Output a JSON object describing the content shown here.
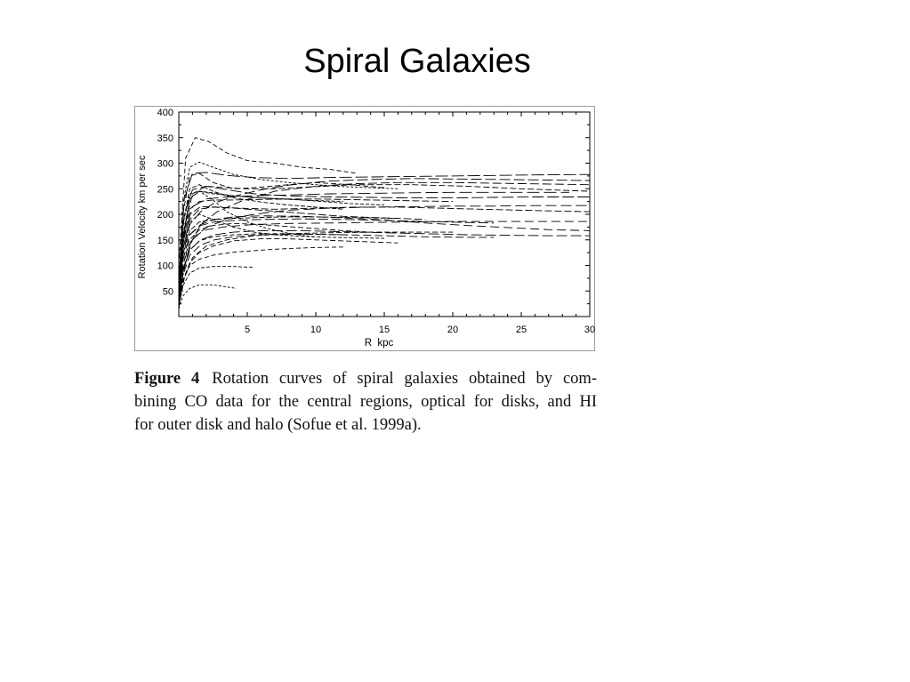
{
  "slide": {
    "title": "Spiral Galaxies"
  },
  "figure": {
    "caption_label": "Figure 4",
    "caption_lines": [
      "Rotation curves of spiral galaxies obtained by com-",
      "bining CO data for the central regions, optical for disks, and HI",
      "for outer disk and halo (Sofue et al. 1999a)."
    ]
  },
  "chart_data": {
    "type": "line",
    "title": "",
    "xlabel": "R  kpc",
    "ylabel": "Rotation Velocity km per sec",
    "xlim": [
      0,
      30
    ],
    "ylim": [
      0,
      400
    ],
    "xticks": [
      5,
      10,
      15,
      20,
      25,
      30
    ],
    "yticks": [
      50,
      100,
      150,
      200,
      250,
      300,
      350,
      400
    ],
    "grid": false,
    "line_color": "#000000",
    "series": [
      {
        "x": [
          0,
          0.3,
          0.8,
          1.5,
          2.5,
          4,
          6,
          8,
          10,
          12.5,
          15
        ],
        "y": [
          60,
          200,
          275,
          280,
          262,
          250,
          253,
          258,
          262,
          258,
          252
        ],
        "dash": "6,3"
      },
      {
        "x": [
          0,
          0.3,
          0.8,
          1.5,
          2.5,
          4,
          6,
          8,
          10,
          12.5,
          15
        ],
        "y": [
          40,
          150,
          232,
          245,
          240,
          236,
          232,
          230,
          226,
          221,
          218
        ],
        "dash": "4,2"
      },
      {
        "x": [
          0,
          0.5,
          1.2,
          2.2,
          3.5,
          5,
          7,
          9,
          11,
          13
        ],
        "y": [
          100,
          310,
          350,
          342,
          320,
          305,
          300,
          292,
          288,
          280
        ],
        "dash": "5,3"
      },
      {
        "x": [
          0,
          0.3,
          0.8,
          1.6,
          2.6,
          4,
          6,
          8,
          11,
          14,
          17,
          20,
          24,
          27,
          30
        ],
        "y": [
          30,
          120,
          180,
          205,
          222,
          235,
          248,
          257,
          265,
          268,
          270,
          269,
          268,
          267,
          266
        ],
        "dash": "12,4"
      },
      {
        "x": [
          0,
          0.3,
          0.8,
          1.6,
          2.8,
          4.5,
          7,
          10,
          13,
          16,
          20,
          25,
          30
        ],
        "y": [
          20,
          80,
          140,
          180,
          205,
          225,
          245,
          255,
          260,
          262,
          262,
          260,
          258
        ],
        "dash": "10,4"
      },
      {
        "x": [
          0,
          0.4,
          1,
          2,
          3.5,
          5,
          7,
          10,
          13,
          17,
          21,
          25,
          30
        ],
        "y": [
          50,
          170,
          240,
          255,
          252,
          250,
          250,
          254,
          258,
          258,
          255,
          250,
          245
        ],
        "dash": "7,3"
      },
      {
        "x": [
          0,
          0.3,
          0.8,
          1.6,
          2.8,
          4.5,
          7,
          10,
          13,
          16,
          19,
          22,
          25,
          28,
          30
        ],
        "y": [
          40,
          140,
          200,
          215,
          214,
          212,
          210,
          212,
          214,
          214,
          212,
          210,
          208,
          206,
          205
        ],
        "dash": "8,3"
      },
      {
        "x": [
          0,
          0.3,
          0.8,
          1.6,
          2.6,
          4,
          6,
          9,
          12,
          15,
          18,
          21,
          24,
          27,
          30
        ],
        "y": [
          30,
          110,
          160,
          180,
          190,
          195,
          197,
          196,
          193,
          189,
          183,
          178,
          174,
          170,
          168
        ],
        "dash": "10,5"
      },
      {
        "x": [
          0,
          0.3,
          0.8,
          1.6,
          2.6,
          4,
          6,
          9,
          12,
          15,
          18,
          21,
          24,
          27,
          30
        ],
        "y": [
          25,
          90,
          130,
          150,
          160,
          165,
          168,
          168,
          166,
          164,
          162,
          160,
          159,
          158,
          158
        ],
        "dash": "12,4"
      },
      {
        "x": [
          0,
          0.3,
          0.8,
          1.5,
          2.5,
          4,
          6,
          8,
          10,
          12,
          14,
          16
        ],
        "y": [
          60,
          220,
          292,
          302,
          292,
          278,
          268,
          262,
          258,
          254,
          252,
          250
        ],
        "dash": "3,2"
      },
      {
        "x": [
          0,
          0.3,
          0.8,
          1.5,
          2.5,
          4,
          6,
          8,
          10,
          12
        ],
        "y": [
          50,
          180,
          250,
          258,
          245,
          232,
          224,
          218,
          214,
          210
        ],
        "dash": "5,2"
      },
      {
        "x": [
          0,
          0.3,
          0.8,
          1.5,
          2.5,
          4,
          6,
          8,
          10,
          12,
          14
        ],
        "y": [
          30,
          100,
          150,
          170,
          178,
          182,
          180,
          176,
          172,
          168,
          165
        ],
        "dash": "6,3"
      },
      {
        "x": [
          0,
          0.3,
          0.8,
          1.5,
          2.5,
          3.5,
          4.2
        ],
        "y": [
          15,
          40,
          55,
          62,
          62,
          58,
          55
        ],
        "dash": "3,2"
      },
      {
        "x": [
          0,
          0.3,
          0.8,
          1.5,
          2.5,
          4,
          5.5
        ],
        "y": [
          20,
          60,
          85,
          95,
          98,
          98,
          96
        ],
        "dash": "4,2"
      },
      {
        "x": [
          0,
          0.3,
          0.8,
          1.5,
          2.5,
          4,
          6,
          8,
          10,
          12
        ],
        "y": [
          25,
          70,
          100,
          112,
          120,
          126,
          130,
          133,
          135,
          136
        ],
        "dash": "5,3"
      },
      {
        "x": [
          0,
          0.4,
          1,
          2,
          3.5,
          5.5,
          8,
          11,
          14,
          17,
          20,
          23,
          26,
          28.5
        ],
        "y": [
          50,
          160,
          215,
          230,
          234,
          236,
          238,
          240,
          241,
          242,
          243,
          243,
          243,
          243
        ],
        "dash": "14,5"
      },
      {
        "x": [
          0,
          0.3,
          0.8,
          1.6,
          2.6,
          4,
          6,
          9,
          12,
          15,
          18,
          21,
          23
        ],
        "y": [
          30,
          110,
          160,
          178,
          185,
          188,
          190,
          191,
          190,
          188,
          186,
          184,
          183
        ],
        "dash": "11,4"
      },
      {
        "x": [
          0,
          0.3,
          0.8,
          1.6,
          2.6,
          4,
          6,
          9,
          12,
          15,
          18,
          21,
          23
        ],
        "y": [
          20,
          80,
          120,
          140,
          150,
          156,
          160,
          161,
          160,
          158,
          156,
          155,
          155
        ],
        "dash": "9,4"
      },
      {
        "x": [
          0,
          0.4,
          1,
          2,
          3.5,
          5.5,
          8,
          11,
          14,
          17,
          20,
          23,
          26,
          30
        ],
        "y": [
          30,
          110,
          155,
          170,
          176,
          180,
          182,
          183,
          184,
          185,
          186,
          186,
          186,
          186
        ],
        "dash": "10,5"
      },
      {
        "x": [
          0,
          0.4,
          1,
          2,
          3.5,
          5.5,
          8,
          11,
          14,
          17,
          20
        ],
        "y": [
          20,
          75,
          115,
          138,
          150,
          158,
          162,
          164,
          165,
          165,
          165
        ],
        "dash": "6,3"
      },
      {
        "x": [
          0,
          0.3,
          0.8,
          1.5,
          2.5,
          4,
          5.5,
          7,
          9,
          11,
          13,
          15
        ],
        "y": [
          40,
          130,
          185,
          200,
          190,
          175,
          165,
          160,
          157,
          155,
          154,
          153
        ],
        "dash": "4,2"
      },
      {
        "x": [
          0,
          0.3,
          0.8,
          1.5,
          2.5,
          4,
          6,
          8,
          10,
          12,
          14,
          16
        ],
        "y": [
          35,
          120,
          168,
          185,
          190,
          192,
          194,
          195,
          195,
          194,
          193,
          192
        ],
        "dash": "6,2"
      },
      {
        "x": [
          0,
          0.3,
          0.8,
          1.5,
          2.5,
          4,
          6,
          8,
          10,
          12
        ],
        "y": [
          25,
          90,
          130,
          148,
          156,
          160,
          162,
          162,
          161,
          160
        ],
        "dash": "5,3"
      },
      {
        "x": [
          0,
          0.3,
          0.8,
          1.5,
          2.5,
          4,
          6,
          8,
          10,
          12,
          14,
          16,
          18,
          20
        ],
        "y": [
          40,
          150,
          210,
          225,
          228,
          228,
          229,
          230,
          230,
          229,
          228,
          227,
          226,
          225
        ],
        "dash": "8,3"
      },
      {
        "x": [
          0,
          0.4,
          1,
          2,
          3.5,
          5.5,
          8,
          11,
          14,
          17,
          20,
          23,
          26,
          30
        ],
        "y": [
          60,
          200,
          248,
          255,
          248,
          240,
          236,
          234,
          233,
          232,
          232,
          233,
          234,
          234
        ],
        "dash": "13,4"
      },
      {
        "x": [
          0,
          0.4,
          1,
          2,
          3.5,
          5.5,
          8,
          11,
          14,
          17,
          20,
          23,
          26,
          30
        ],
        "y": [
          30,
          100,
          150,
          175,
          190,
          200,
          208,
          212,
          214,
          215,
          216,
          216,
          217,
          217
        ],
        "dash": "12,5"
      },
      {
        "x": [
          0,
          0.3,
          0.8,
          1.5,
          2.5,
          4,
          6,
          8,
          10,
          12
        ],
        "y": [
          45,
          160,
          230,
          245,
          242,
          236,
          232,
          229,
          227,
          225
        ],
        "dash": "4,2"
      },
      {
        "x": [
          0,
          0.3,
          0.8,
          1.5,
          2.5,
          3.5,
          5,
          6.5,
          8,
          10
        ],
        "y": [
          50,
          180,
          240,
          245,
          228,
          205,
          185,
          172,
          163,
          155
        ],
        "dash": "3,2"
      },
      {
        "x": [
          0,
          0.4,
          1,
          2,
          3.5,
          5.5,
          8,
          11,
          14,
          17,
          20,
          23,
          26,
          30
        ],
        "y": [
          70,
          230,
          280,
          282,
          276,
          272,
          270,
          272,
          273,
          274,
          275,
          276,
          277,
          278
        ],
        "dash": "14,4"
      },
      {
        "x": [
          0,
          0.3,
          0.8,
          1.5,
          2.5,
          4,
          6,
          8,
          10,
          12,
          14,
          16
        ],
        "y": [
          20,
          70,
          105,
          125,
          138,
          148,
          152,
          152,
          150,
          148,
          146,
          144
        ],
        "dash": "6,3"
      },
      {
        "x": [
          0,
          0.3,
          0.8,
          1.5,
          2.5,
          4,
          6,
          8,
          10,
          12,
          14,
          16,
          18
        ],
        "y": [
          35,
          130,
          190,
          210,
          214,
          212,
          208,
          204,
          200,
          196,
          194,
          192,
          190
        ],
        "dash": "9,3"
      }
    ]
  }
}
